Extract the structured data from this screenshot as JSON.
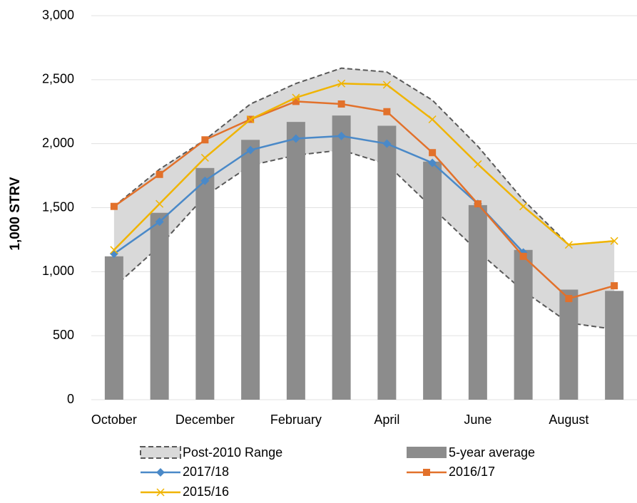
{
  "chart_data": {
    "type": "combo",
    "y_label": "1,000 STRV",
    "categories": [
      "October",
      null,
      "December",
      null,
      "February",
      null,
      "April",
      null,
      "June",
      null,
      "August",
      null
    ],
    "ylim": [
      0,
      3000
    ],
    "yticks": [
      0,
      500,
      {
        "value": 1000,
        "label": "1,000"
      },
      {
        "value": 1500,
        "label": "1,500"
      },
      {
        "value": 2000,
        "label": "2,000"
      },
      {
        "value": 2500,
        "label": "2,500"
      },
      {
        "value": 3000,
        "label": "3,000"
      }
    ],
    "grid": true,
    "range": {
      "name": "Post-2010 Range",
      "color": "#d9d9d9",
      "line_color": "#595959",
      "upper": [
        1510,
        1800,
        2030,
        2310,
        2470,
        2590,
        2560,
        2340,
        1980,
        1560,
        1210,
        1240
      ],
      "lower": [
        880,
        1200,
        1590,
        1830,
        1910,
        1950,
        1840,
        1500,
        1160,
        850,
        600,
        550
      ]
    },
    "bars": {
      "name": "5-year average",
      "color": "#8c8c8c",
      "values": [
        1120,
        1460,
        1810,
        2030,
        2170,
        2220,
        2140,
        1860,
        1520,
        1170,
        860,
        850
      ]
    },
    "series": [
      {
        "name": "2017/18",
        "color": "#4a89c8",
        "marker": "diamond",
        "values": [
          1140,
          1390,
          1710,
          1950,
          2040,
          2060,
          2000,
          1850,
          1530,
          1150,
          null,
          null
        ]
      },
      {
        "name": "2016/17",
        "color": "#e2712b",
        "marker": "square",
        "values": [
          1510,
          1760,
          2030,
          2190,
          2330,
          2310,
          2250,
          1930,
          1530,
          1120,
          790,
          890
        ]
      },
      {
        "name": "2015/16",
        "color": "#f0b400",
        "marker": "x",
        "values": [
          1170,
          1530,
          1890,
          2190,
          2360,
          2470,
          2460,
          2190,
          1840,
          1510,
          1210,
          1240
        ]
      }
    ]
  }
}
